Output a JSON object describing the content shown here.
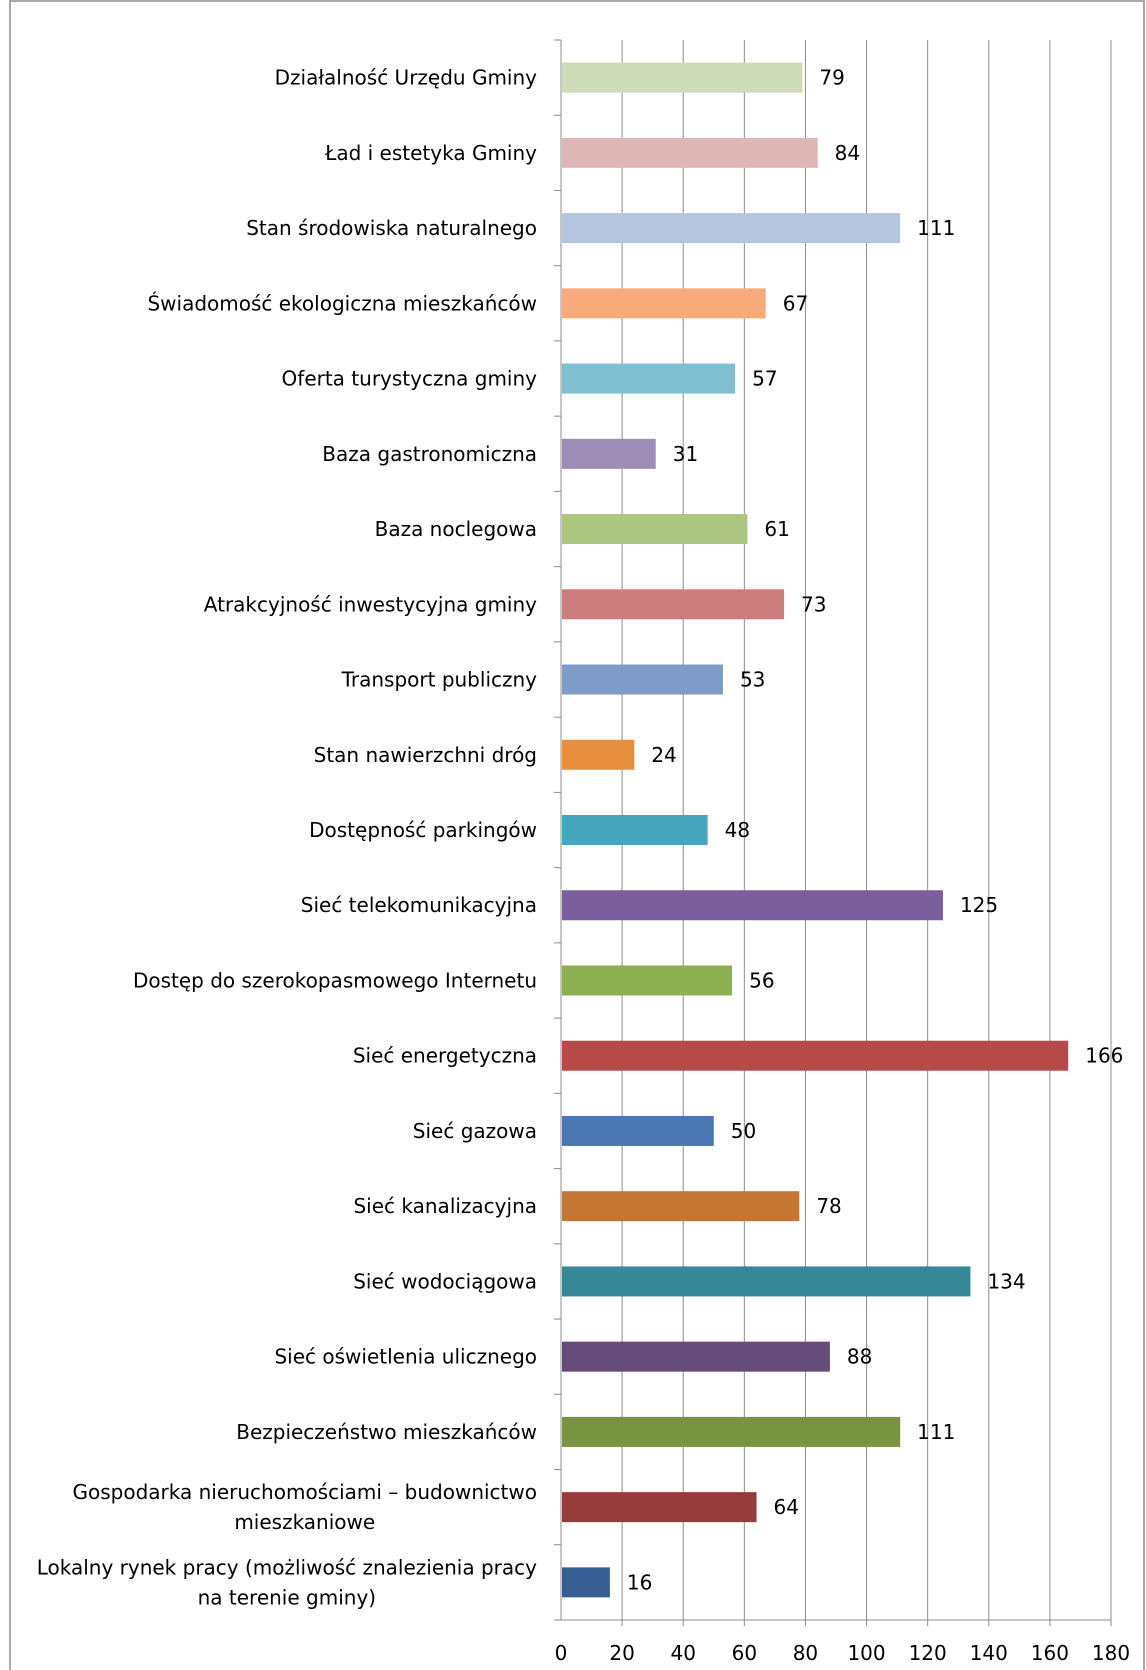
{
  "chart_data": {
    "type": "bar",
    "orientation": "horizontal",
    "title": "",
    "xlabel": "",
    "ylabel": "",
    "xlim": [
      0,
      180
    ],
    "x_ticks": [
      0,
      20,
      40,
      60,
      80,
      100,
      120,
      140,
      160,
      180
    ],
    "grid": true,
    "legend": "none",
    "categories": [
      "Działalność Urzędu Gminy",
      "Ład i estetyka  Gminy",
      "Stan środowiska naturalnego",
      "Świadomość ekologiczna mieszkańców",
      "Oferta turystyczna gminy",
      "Baza gastronomiczna",
      "Baza noclegowa",
      "Atrakcyjność inwestycyjna gminy",
      "Transport publiczny",
      "Stan nawierzchni dróg",
      "Dostępność parkingów",
      "Sieć telekomunikacyjna",
      "Dostęp do szerokopasmowego Internetu",
      "Sieć energetyczna",
      "Sieć gazowa",
      "Sieć kanalizacyjna",
      "Sieć wodociągowa",
      "Sieć oświetlenia ulicznego",
      "Bezpieczeństwo mieszkańców",
      "Gospodarka nieruchomościami – budownictwo mieszkaniowe",
      "Lokalny rynek pracy (możliwość znalezienia pracy na terenie gminy)"
    ],
    "values": [
      79,
      84,
      111,
      67,
      57,
      31,
      61,
      73,
      53,
      24,
      48,
      125,
      56,
      166,
      50,
      78,
      134,
      88,
      111,
      64,
      16
    ],
    "colors": [
      "#cddcb6",
      "#deb6b5",
      "#b5c4df",
      "#f9aa79",
      "#7fbfd2",
      "#9d8cb5",
      "#acc681",
      "#cc7c7c",
      "#7f9cc9",
      "#e88e3f",
      "#46a6bd",
      "#7b5e9c",
      "#8eb050",
      "#b64a48",
      "#4b77b4",
      "#c47632",
      "#368897",
      "#644b7a",
      "#789440",
      "#973b3a",
      "#375e92"
    ]
  }
}
